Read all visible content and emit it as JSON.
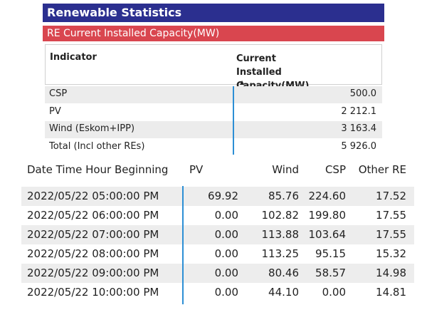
{
  "panel": {
    "title": "Renewable Statistics",
    "subtitle": "RE Current Installed Capacity(MW)",
    "table": {
      "columns": [
        "Indicator",
        "Current Installed Capacity(MW)"
      ],
      "rows": [
        [
          "CSP",
          "500.0"
        ],
        [
          "PV",
          "2 212.1"
        ],
        [
          "Wind (Eskom+IPP)",
          "3 163.4"
        ],
        [
          "Total (Incl other REs)",
          "5 926.0"
        ]
      ]
    }
  },
  "hourly_table": {
    "columns": [
      "Date Time Hour Beginning",
      "PV",
      "Wind",
      "CSP",
      "Other RE"
    ],
    "rows": [
      [
        "2022/05/22 05:00:00 PM",
        "69.92",
        "85.76",
        "224.60",
        "17.52"
      ],
      [
        "2022/05/22 06:00:00 PM",
        "0.00",
        "102.82",
        "199.80",
        "17.55"
      ],
      [
        "2022/05/22 07:00:00 PM",
        "0.00",
        "113.88",
        "103.64",
        "17.55"
      ],
      [
        "2022/05/22 08:00:00 PM",
        "0.00",
        "113.25",
        "95.15",
        "15.32"
      ],
      [
        "2022/05/22 09:00:00 PM",
        "0.00",
        "80.46",
        "58.57",
        "14.98"
      ],
      [
        "2022/05/22 10:00:00 PM",
        "0.00",
        "44.10",
        "0.00",
        "14.81"
      ]
    ]
  }
}
